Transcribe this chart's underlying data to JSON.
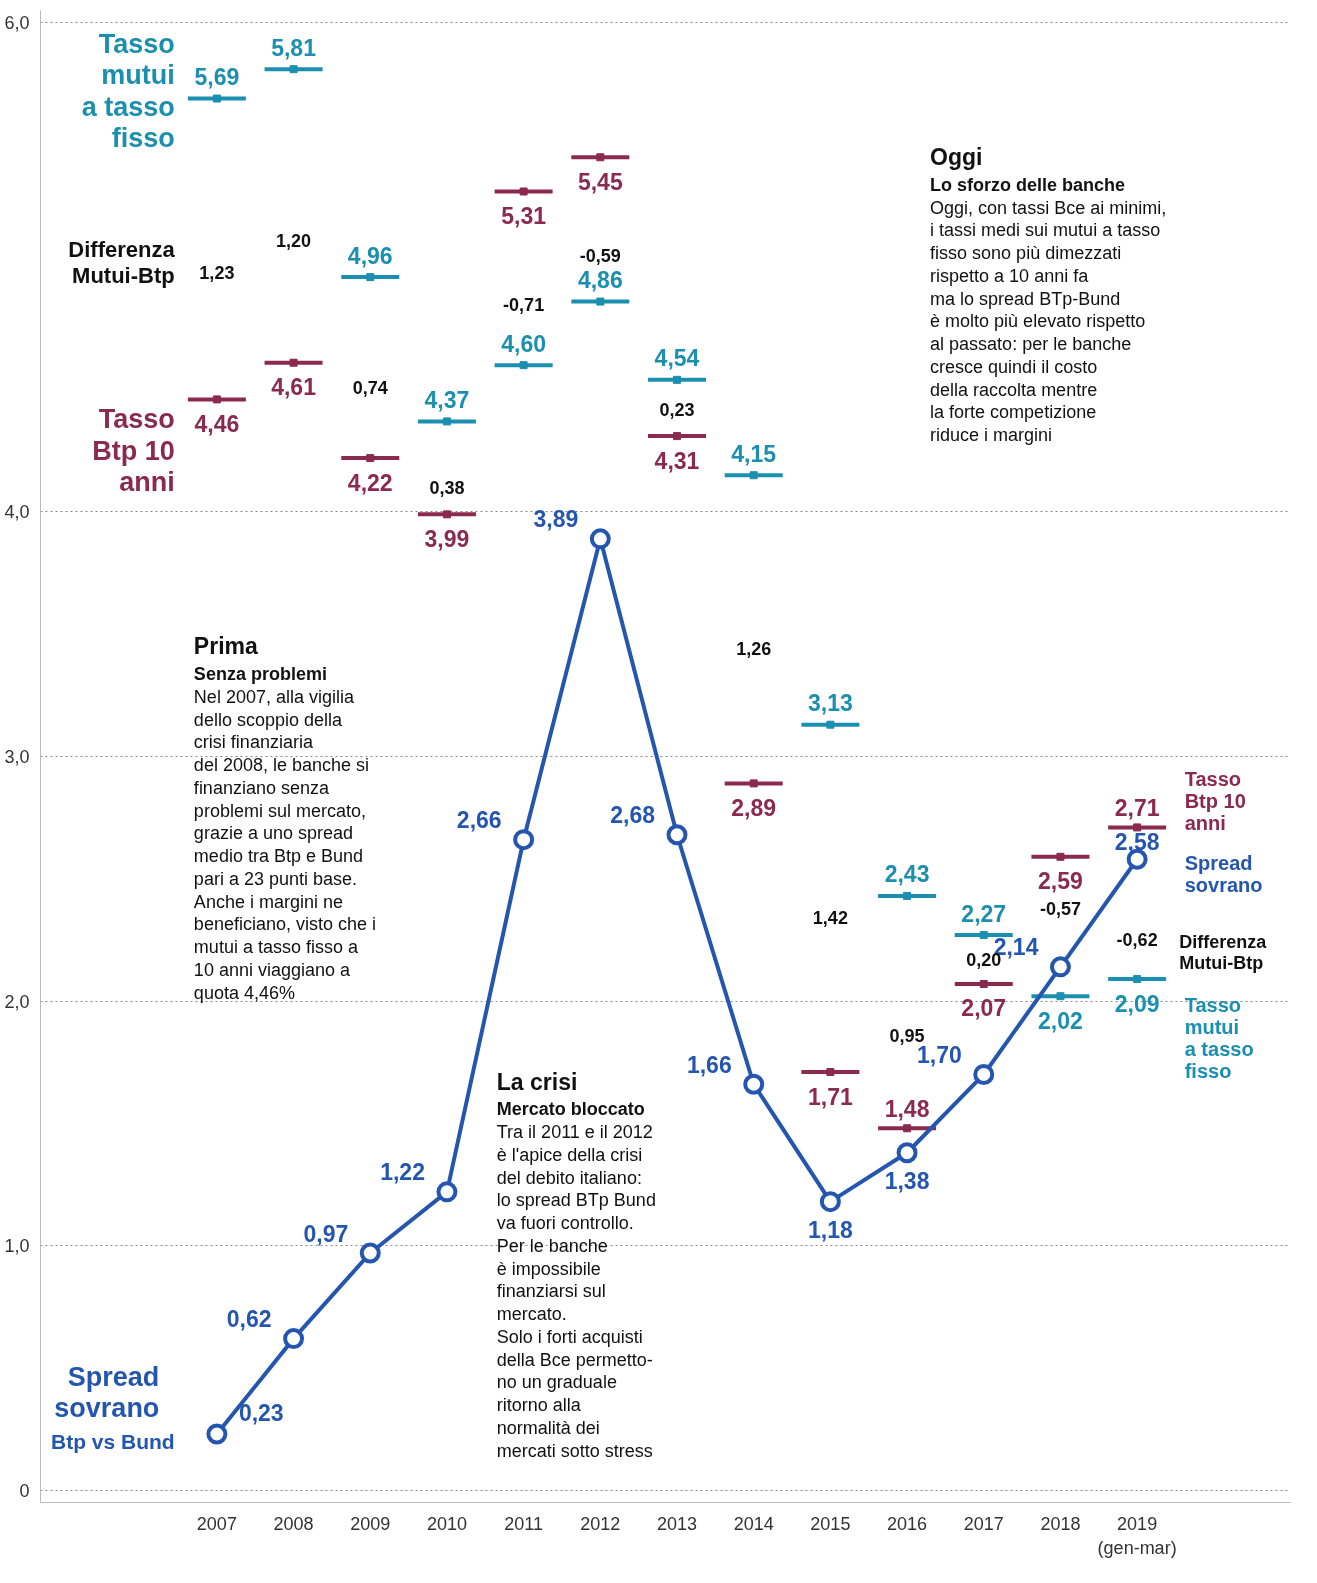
{
  "chart_data": {
    "type": "line",
    "categories": [
      "2007",
      "2008",
      "2009",
      "2010",
      "2011",
      "2012",
      "2013",
      "2014",
      "2015",
      "2016",
      "2017",
      "2018",
      "2019\n(gen-mar)"
    ],
    "ylim": [
      -0.05,
      6.05
    ],
    "yticks": [
      {
        "value": 0,
        "label": "0"
      },
      {
        "value": 1,
        "label": "1,0"
      },
      {
        "value": 2,
        "label": "2,0"
      },
      {
        "value": 3,
        "label": "3,0"
      },
      {
        "value": 4,
        "label": "4,0"
      },
      {
        "value": 6,
        "label": "6,0"
      }
    ],
    "grid": "y",
    "line_style": "solid",
    "series": [
      {
        "name": "Tasso mutui a tasso fisso",
        "type": "scatter",
        "marker": "square",
        "color": "#1b8fb0",
        "values": [
          5.69,
          5.81,
          4.96,
          4.37,
          4.6,
          4.86,
          4.54,
          4.15,
          3.13,
          2.43,
          2.27,
          2.02,
          2.09
        ],
        "value_labels": [
          "5,69",
          "5,81",
          "4,96",
          "4,37",
          "4,60",
          "4,86",
          "4,54",
          "4,15",
          "3,13",
          "2,43",
          "2,27",
          "2,02",
          "2,09"
        ]
      },
      {
        "name": "Tasso Btp 10 anni",
        "type": "scatter",
        "marker": "square",
        "color": "#8a2a4f",
        "values": [
          4.46,
          4.61,
          4.22,
          3.99,
          5.31,
          5.45,
          4.31,
          2.89,
          1.71,
          1.48,
          2.07,
          2.59,
          2.71
        ],
        "value_labels": [
          "4,46",
          "4,61",
          "4,22",
          "3,99",
          "5,31",
          "5,45",
          "4,31",
          "2,89",
          "1,71",
          "1,48",
          "2,07",
          "2,59",
          "2,71"
        ]
      },
      {
        "name": "Spread sovrano",
        "marker": "circle",
        "color": "#2456b0",
        "values": [
          0.23,
          0.62,
          0.97,
          1.22,
          2.66,
          3.89,
          2.68,
          1.66,
          1.18,
          1.38,
          1.7,
          2.14,
          2.58
        ],
        "value_labels": [
          "0,23",
          "0,62",
          "0,97",
          "1,22",
          "2,66",
          "3,89",
          "2,68",
          "1,66",
          "1,18",
          "1,38",
          "1,70",
          "2,14",
          "2,58"
        ]
      }
    ],
    "annotations": [
      "Prima\nSenza problemi\nNel 2007, alla vigilia\ndello scoppio della\ncrisi finanziaria\ndel 2008, le banche si\nfinanziano senza\nproblemi sul mercato,\ngrazie a uno spread\nmedio tra Btp e Bund\npari a 23 punti base.\nAnche i margini ne\nbeneficiano, visto che i\nmutui a tasso fisso a\n10 anni viaggiano a\nquota 4,46%",
      "La crisi\nMercato bloccato\nTra il 2011 e il 2012\nè l'apice della crisi\ndel debito italiano:\nlo spread BTp Bund\nva fuori controllo.\nPer le banche\nè impossibile\nfinanziarsi sul\nmercato.\nSolo i forti acquisti\ndella Bce permetto-\nno un graduale\nritorno alla\nnormalità dei\nmercati sotto stress",
      "Oggi\nLo sforzo delle banche\nOggi, con tassi Bce ai minimi,\ni tassi medi sui mutui a tasso\nfisso sono più dimezzati\nrispetto a 10 anni fa\nma lo spread BTp-Bund\nè molto più elevato rispetto\nal passato: per le banche\ncresce quindi il costo\ndella raccolta mentre\nla forte competizione\nriduce i margini",
      "Btp vs Bund",
      "Differenza\nMutui-Btp",
      "Differenza\nMutui-Btp",
      "1,23",
      "1,20",
      "0,74",
      "0,38",
      "-0,71",
      "-0,59",
      "0,23",
      "1,26",
      "1,42",
      "0,95",
      "0,20",
      "-0,57",
      "-0,62"
    ]
  }
}
